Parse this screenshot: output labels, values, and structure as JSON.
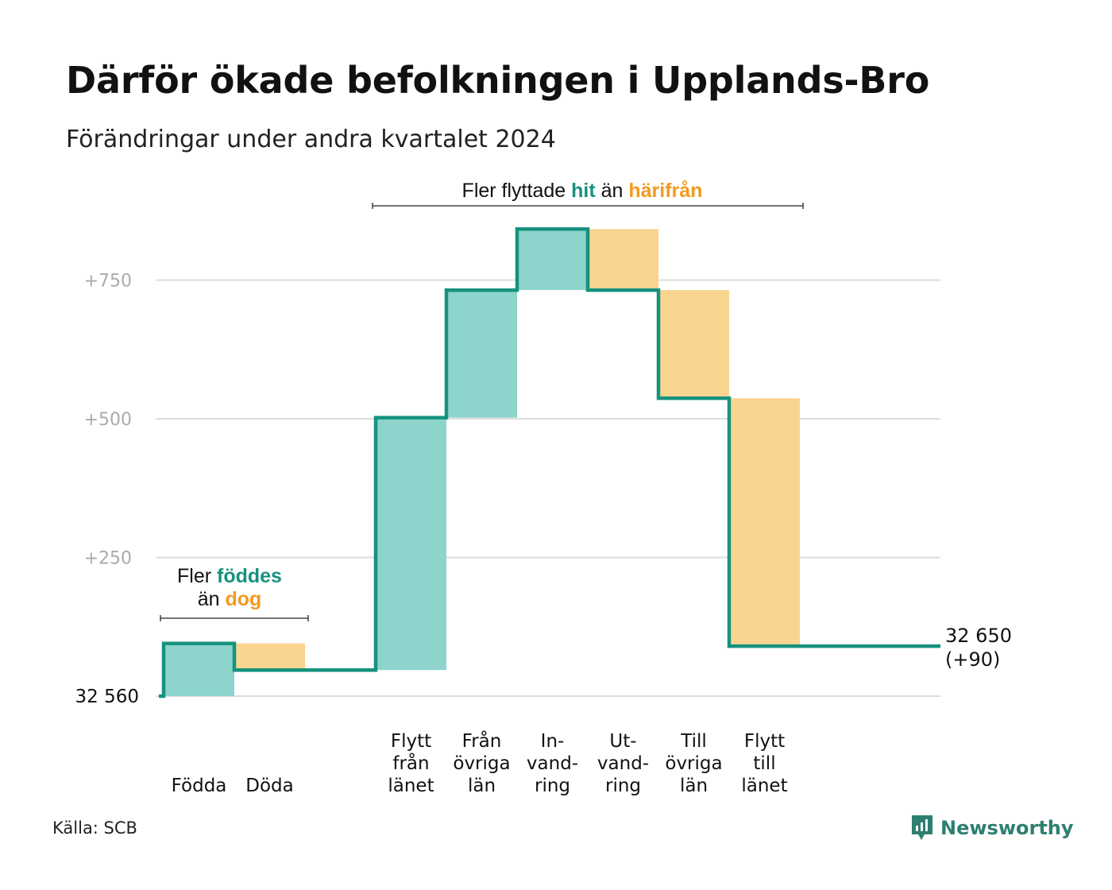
{
  "title": "Därför ökade befolkningen i Upplands-Bro",
  "subtitle": "Förändringar under andra kvartalet 2024",
  "source": "Källa: SCB",
  "brand": "Newsworthy",
  "colors": {
    "inflow": "#8dd5cc",
    "outflow": "#fad58f",
    "line": "#16927f",
    "teal_text": "#16927f",
    "orange_text": "#f39a1d",
    "grid": "#dddddd"
  },
  "annotations": {
    "births": {
      "pre1": "Fler ",
      "hi1": "föddes",
      "pre2": "än ",
      "hi2": "dog"
    },
    "migration": {
      "pre1": "Fler flyttade ",
      "hi1": "hit",
      "pre2": " än ",
      "hi2": "härifrån"
    }
  },
  "chart_data": {
    "type": "waterfall",
    "title": "Därför ökade befolkningen i Upplands-Bro",
    "subtitle": "Förändringar under andra kvartalet 2024",
    "start_label": "32  560",
    "end_label": [
      "32 650",
      "(+90)"
    ],
    "y_ticks": [
      {
        "value": 250,
        "label": "+250"
      },
      {
        "value": 500,
        "label": "+500"
      },
      {
        "value": 750,
        "label": "+750"
      }
    ],
    "ylim": [
      0,
      860
    ],
    "categories": [
      {
        "label": [
          "Födda"
        ],
        "value": 95
      },
      {
        "label": [
          "Döda"
        ],
        "value": -48
      },
      {
        "label": [],
        "value": 0
      },
      {
        "label": [
          "Flytt",
          "från",
          "länet"
        ],
        "value": 455
      },
      {
        "label": [
          "Från",
          "övriga",
          "län"
        ],
        "value": 230
      },
      {
        "label": [
          "In-",
          "vand-",
          "ring"
        ],
        "value": 110
      },
      {
        "label": [
          "Ut-",
          "vand-",
          "ring"
        ],
        "value": -110
      },
      {
        "label": [
          "Till",
          "övriga",
          "län"
        ],
        "value": -195
      },
      {
        "label": [
          "Flytt",
          "till",
          "länet"
        ],
        "value": -447
      }
    ],
    "final_change": 90
  }
}
